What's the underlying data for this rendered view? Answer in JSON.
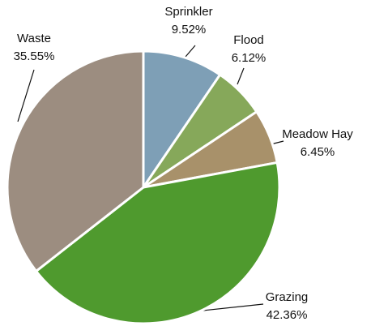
{
  "chart_data": {
    "type": "pie",
    "categories": [
      "Sprinkler",
      "Flood",
      "Meadow Hay",
      "Grazing",
      "Waste"
    ],
    "values": [
      9.52,
      6.12,
      6.45,
      42.36,
      35.55
    ],
    "value_labels": [
      "9.52%",
      "6.12%",
      "6.45%",
      "42.36%",
      "35.55%"
    ],
    "colors": [
      "#7e9fb6",
      "#86a85a",
      "#a8916a",
      "#4f9a2e",
      "#9c8d80"
    ]
  }
}
